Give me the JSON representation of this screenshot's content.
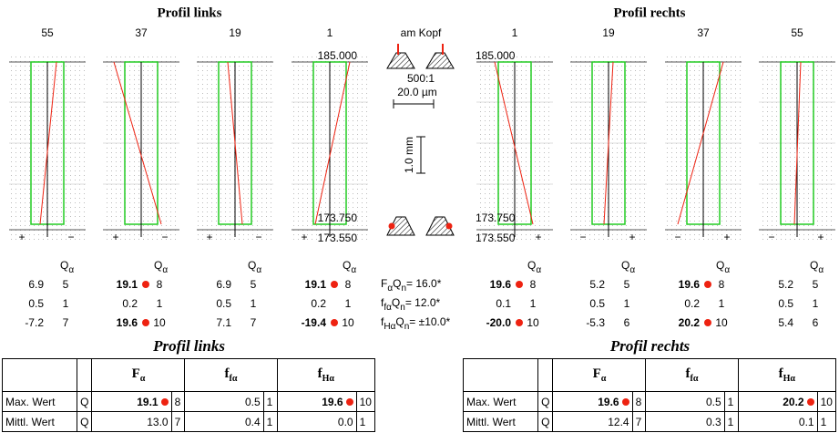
{
  "titles": {
    "left": "Profil links",
    "right": "Profil rechts"
  },
  "stats_header": {
    "main": "Q",
    "sub": "α"
  },
  "scale_labels": {
    "top": "185.000",
    "mid": "173.750",
    "bottom": "173.550"
  },
  "panels": [
    {
      "tooth": 55,
      "signs": {
        "left": "+",
        "right": "−"
      },
      "stats": [
        {
          "value": "6.9",
          "q": "5"
        },
        {
          "value": "0.5",
          "q": "1"
        },
        {
          "value": "-7.2",
          "q": "7"
        }
      ]
    },
    {
      "tooth": 37,
      "signs": {
        "left": "+",
        "right": "−"
      },
      "stats": [
        {
          "value": "19.1",
          "q": "8",
          "alert": true
        },
        {
          "value": "0.2",
          "q": "1"
        },
        {
          "value": "19.6",
          "q": "10",
          "alert": true
        }
      ]
    },
    {
      "tooth": 19,
      "signs": {
        "left": "+",
        "right": "−"
      },
      "stats": [
        {
          "value": "6.9",
          "q": "5"
        },
        {
          "value": "0.5",
          "q": "1"
        },
        {
          "value": "7.1",
          "q": "7"
        }
      ]
    },
    {
      "tooth": 1,
      "signs": {
        "left": "+"
      },
      "stats": [
        {
          "value": "19.1",
          "q": "8",
          "alert": true
        },
        {
          "value": "0.2",
          "q": "1"
        },
        {
          "value": "-19.4",
          "q": "10",
          "alert": true
        }
      ]
    },
    {
      "tooth": 1,
      "signs": {
        "right": "+"
      },
      "stats": [
        {
          "value": "19.6",
          "q": "8",
          "alert": true
        },
        {
          "value": "0.1",
          "q": "1"
        },
        {
          "value": "-20.0",
          "q": "10",
          "alert": true
        }
      ]
    },
    {
      "tooth": 19,
      "signs": {
        "left": "−",
        "right": "+"
      },
      "stats": [
        {
          "value": "5.2",
          "q": "5"
        },
        {
          "value": "0.5",
          "q": "1"
        },
        {
          "value": "-5.3",
          "q": "6"
        }
      ]
    },
    {
      "tooth": 37,
      "signs": {
        "left": "−",
        "right": "+"
      },
      "stats": [
        {
          "value": "19.6",
          "q": "8",
          "alert": true
        },
        {
          "value": "0.2",
          "q": "1"
        },
        {
          "value": "20.2",
          "q": "10",
          "alert": true
        }
      ]
    },
    {
      "tooth": 55,
      "signs": {
        "left": "−",
        "right": "+"
      },
      "stats": [
        {
          "value": "5.2",
          "q": "5"
        },
        {
          "value": "0.5",
          "q": "1"
        },
        {
          "value": "5.4",
          "q": "6"
        }
      ]
    }
  ],
  "center": {
    "position": "am Kopf",
    "magnification": "500:1",
    "x_scale": "20.0 µm",
    "y_scale": "1.0 mm",
    "tolerances": [
      {
        "sym": "F",
        "sym_sub": "α",
        "q": "Q",
        "q_sub": "n",
        "value": "= 16.0*"
      },
      {
        "sym": "f",
        "sym_sub": "fα",
        "q": "Q",
        "q_sub": "n",
        "value": "= 12.0*"
      },
      {
        "sym": "f",
        "sym_sub": "Hα",
        "q": "Q",
        "q_sub": "n",
        "value": "= ±10.0*"
      }
    ]
  },
  "tables": [
    {
      "title": "Profil links",
      "columns": [
        {
          "main": "F",
          "sub": "α"
        },
        {
          "main": "f",
          "sub": "fα"
        },
        {
          "main": "f",
          "sub": "Hα"
        }
      ],
      "rows": [
        {
          "label": "Max. Wert",
          "q": "Q",
          "cells": [
            {
              "value": "19.1",
              "q": "8",
              "alert": true
            },
            {
              "value": "0.5",
              "q": "1"
            },
            {
              "value": "19.6",
              "q": "10",
              "alert": true
            }
          ]
        },
        {
          "label": "Mittl. Wert",
          "q": "Q",
          "cells": [
            {
              "value": "13.0",
              "q": "7"
            },
            {
              "value": "0.4",
              "q": "1"
            },
            {
              "value": "0.0",
              "q": "1"
            }
          ]
        }
      ]
    },
    {
      "title": "Profil rechts",
      "columns": [
        {
          "main": "F",
          "sub": "α"
        },
        {
          "main": "f",
          "sub": "fα"
        },
        {
          "main": "f",
          "sub": "Hα"
        }
      ],
      "rows": [
        {
          "label": "Max. Wert",
          "q": "Q",
          "cells": [
            {
              "value": "19.6",
              "q": "8",
              "alert": true
            },
            {
              "value": "0.5",
              "q": "1"
            },
            {
              "value": "20.2",
              "q": "10",
              "alert": true
            }
          ]
        },
        {
          "label": "Mittl. Wert",
          "q": "Q",
          "cells": [
            {
              "value": "12.4",
              "q": "7"
            },
            {
              "value": "0.3",
              "q": "1"
            },
            {
              "value": "0.1",
              "q": "1"
            }
          ]
        }
      ]
    }
  ]
}
